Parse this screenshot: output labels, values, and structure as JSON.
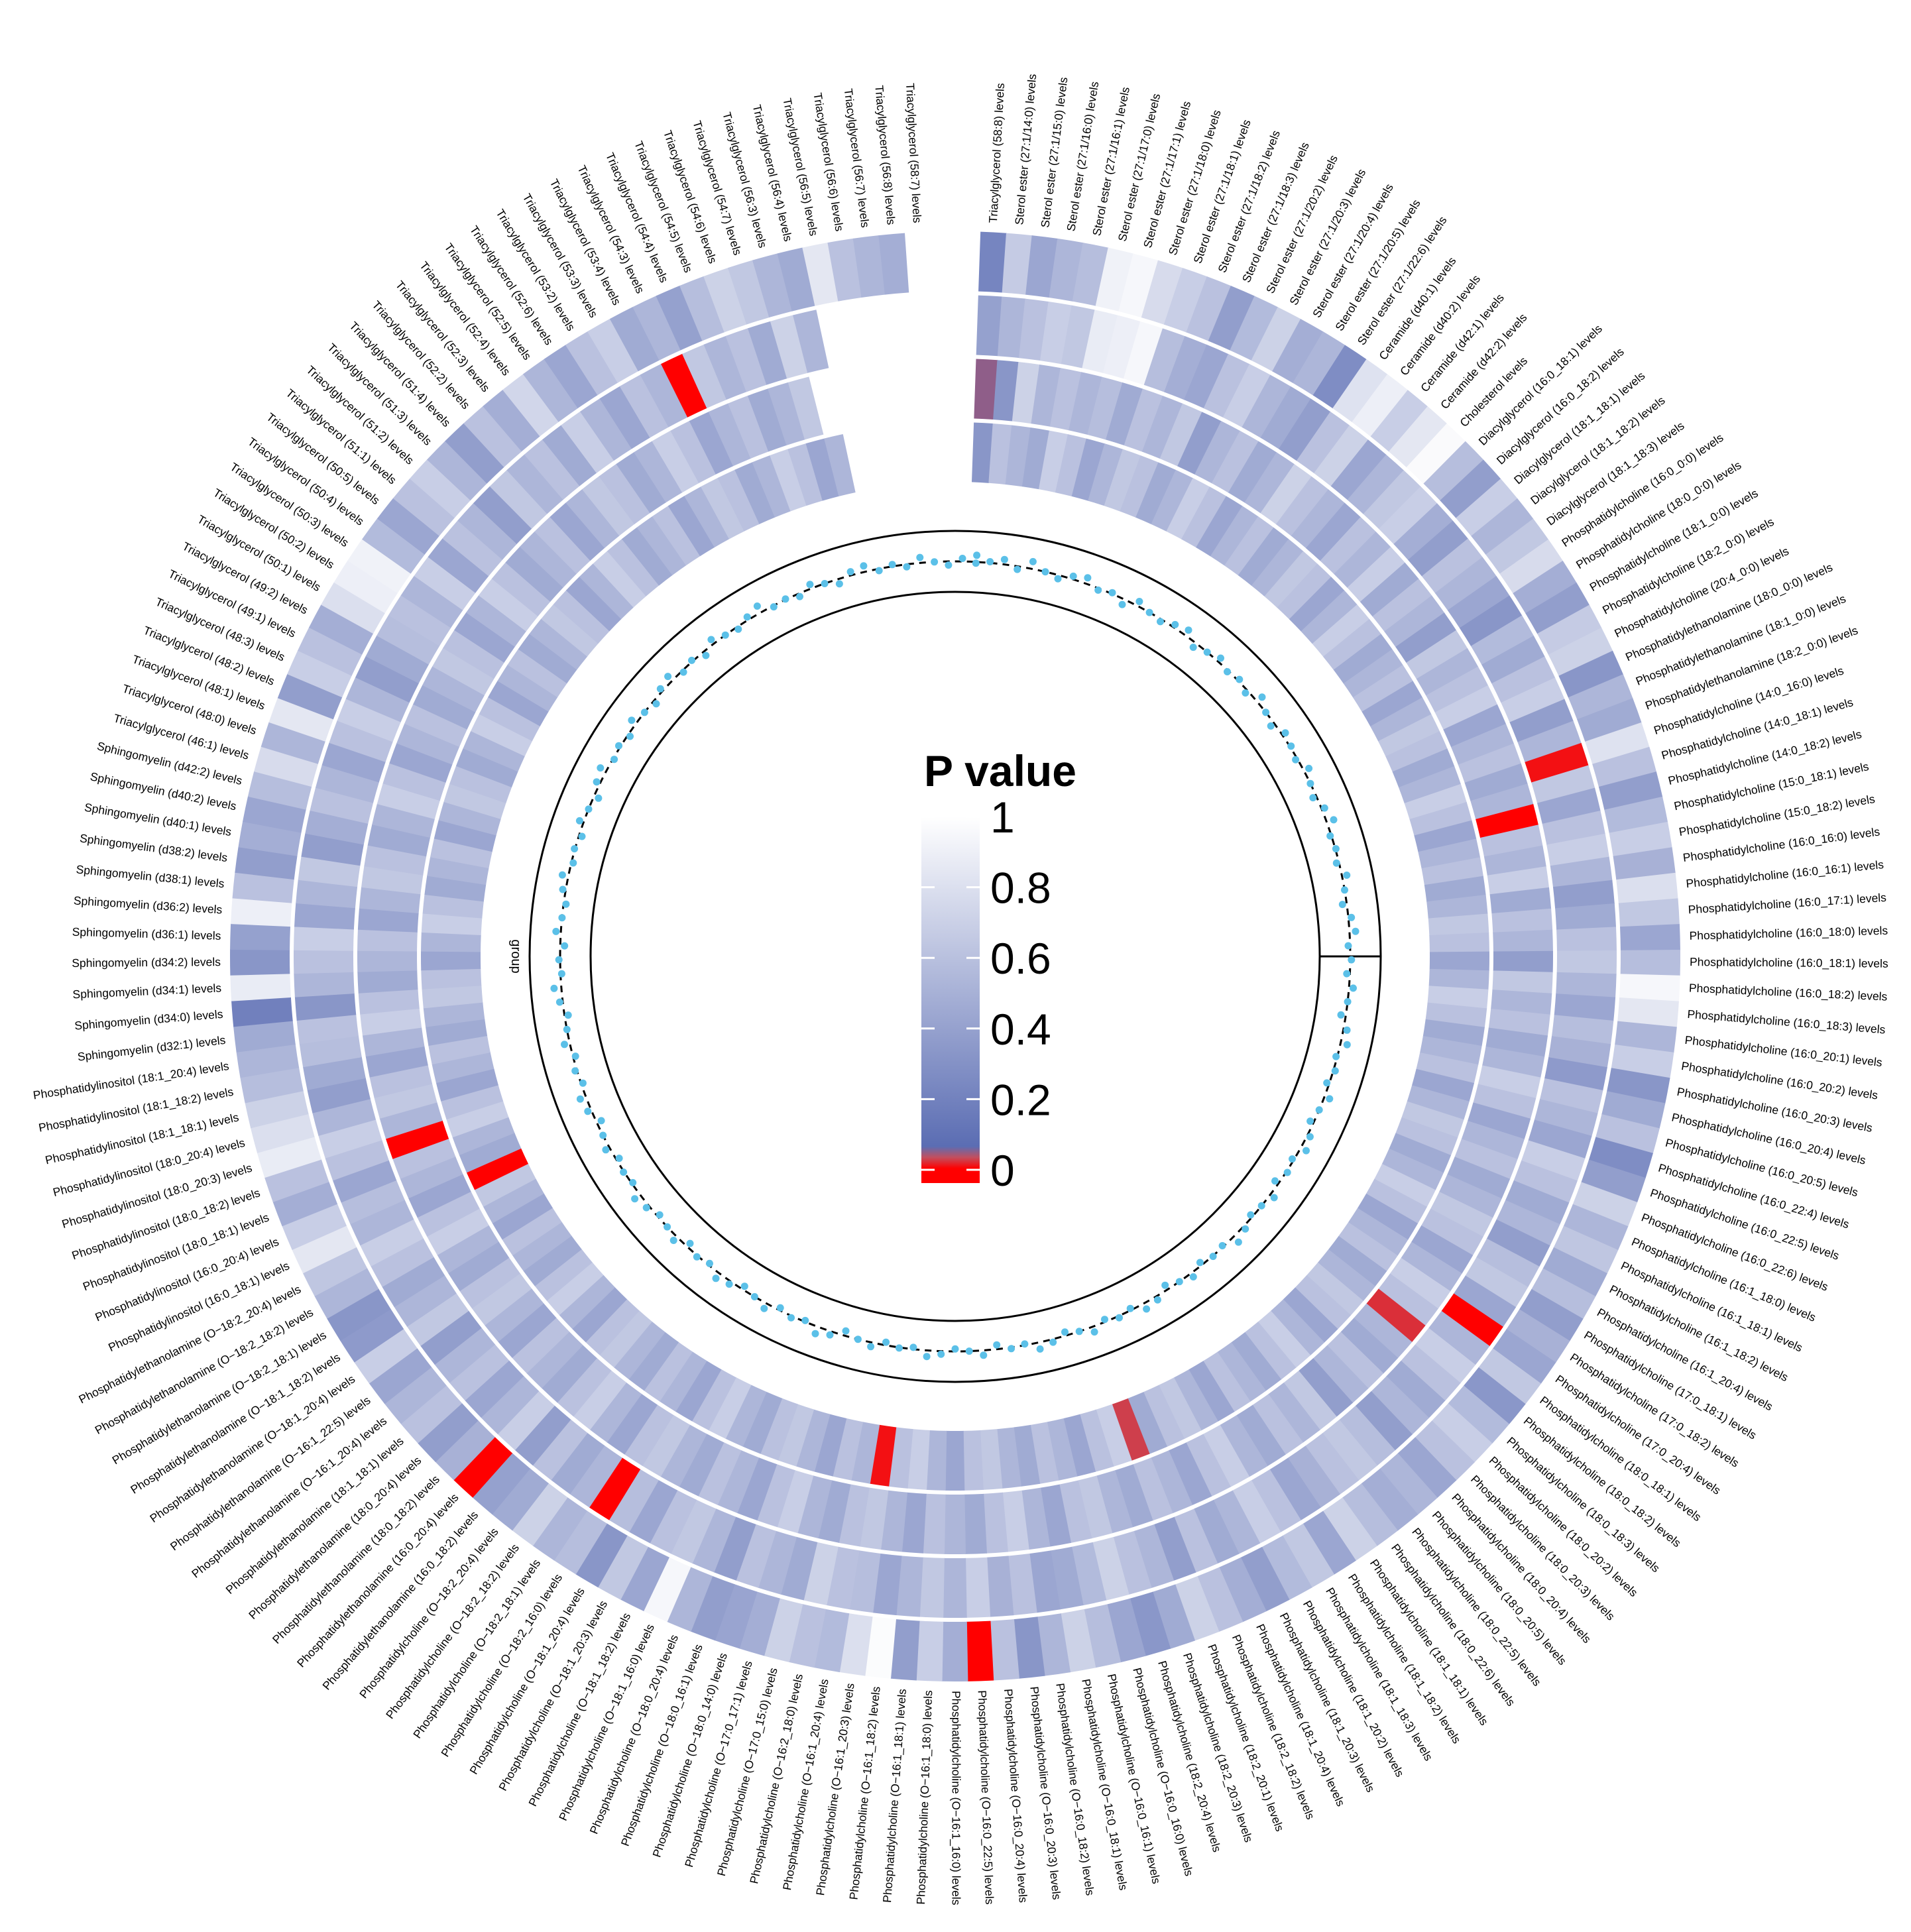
{
  "chart_data": {
    "type": "heatmap",
    "layout": "circular",
    "title": "",
    "legend": {
      "title": "P value",
      "ticks": [
        "1",
        "0.8",
        "0.6",
        "0.4",
        "0.2",
        "0"
      ],
      "placement": "center",
      "colors": {
        "zero": "#ff0000",
        "low": "#5b6db3",
        "high": "#ffffff"
      }
    },
    "track_label": "group",
    "point_color": "#5bc0e8",
    "labels": [
      "Triacylglycerol (58:8) levels",
      "Sterol ester (27:1/14:0) levels",
      "Sterol ester (27:1/15:0) levels",
      "Sterol ester (27:1/16:0) levels",
      "Sterol ester (27:1/16:1) levels",
      "Sterol ester (27:1/17:0) levels",
      "Sterol ester (27:1/17:1) levels",
      "Sterol ester (27:1/18:0) levels",
      "Sterol ester (27:1/18:1) levels",
      "Sterol ester (27:1/18:2) levels",
      "Sterol ester (27:1/18:3) levels",
      "Sterol ester (27:1/20:2) levels",
      "Sterol ester (27:1/20:3) levels",
      "Sterol ester (27:1/20:4) levels",
      "Sterol ester (27:1/20:5) levels",
      "Sterol ester (27:1/22:6) levels",
      "Ceramide (d40:1) levels",
      "Ceramide (d40:2) levels",
      "Ceramide (d42:1) levels",
      "Ceramide (d42:2) levels",
      "Cholesterol levels",
      "Diacylglycerol (16:0_18:1) levels",
      "Diacylglycerol (16:0_18:2) levels",
      "Diacylglycerol (18:1_18:1) levels",
      "Diacylglycerol (18:1_18:2) levels",
      "Diacylglycerol (18:1_18:3) levels",
      "Phosphatidylcholine (16:0_0:0) levels",
      "Phosphatidylcholine (18:0_0:0) levels",
      "Phosphatidylcholine (18:1_0:0) levels",
      "Phosphatidylcholine (18:2_0:0) levels",
      "Phosphatidylcholine (20:4_0:0) levels",
      "Phosphatidylethanolamine (18:0_0:0) levels",
      "Phosphatidylethanolamine (18:1_0:0) levels",
      "Phosphatidylethanolamine (18:2_0:0) levels",
      "Phosphatidylcholine (14:0_16:0) levels",
      "Phosphatidylcholine (14:0_18:1) levels",
      "Phosphatidylcholine (14:0_18:2) levels",
      "Phosphatidylcholine (15:0_18:1) levels",
      "Phosphatidylcholine (15:0_18:2) levels",
      "Phosphatidylcholine (16:0_16:0) levels",
      "Phosphatidylcholine (16:0_16:1) levels",
      "Phosphatidylcholine (16:0_17:1) levels",
      "Phosphatidylcholine (16:0_18:0) levels",
      "Phosphatidylcholine (16:0_18:1) levels",
      "Phosphatidylcholine (16:0_18:2) levels",
      "Phosphatidylcholine (16:0_18:3) levels",
      "Phosphatidylcholine (16:0_20:1) levels",
      "Phosphatidylcholine (16:0_20:2) levels",
      "Phosphatidylcholine (16:0_20:3) levels",
      "Phosphatidylcholine (16:0_20:4) levels",
      "Phosphatidylcholine (16:0_20:5) levels",
      "Phosphatidylcholine (16:0_22:4) levels",
      "Phosphatidylcholine (16:0_22:5) levels",
      "Phosphatidylcholine (16:0_22:6) levels",
      "Phosphatidylcholine (16:1_18:0) levels",
      "Phosphatidylcholine (16:1_18:1) levels",
      "Phosphatidylcholine (16:1_18:2) levels",
      "Phosphatidylcholine (16:1_20:4) levels",
      "Phosphatidylcholine (17:0_18:1) levels",
      "Phosphatidylcholine (17:0_18:2) levels",
      "Phosphatidylcholine (17:0_20:4) levels",
      "Phosphatidylcholine (18:0_18:1) levels",
      "Phosphatidylcholine (18:0_18:2) levels",
      "Phosphatidylcholine (18:0_18:3) levels",
      "Phosphatidylcholine (18:0_20:2) levels",
      "Phosphatidylcholine (18:0_20:3) levels",
      "Phosphatidylcholine (18:0_20:4) levels",
      "Phosphatidylcholine (18:0_20:5) levels",
      "Phosphatidylcholine (18:0_22:5) levels",
      "Phosphatidylcholine (18:0_22:6) levels",
      "Phosphatidylcholine (18:1_18:1) levels",
      "Phosphatidylcholine (18:1_18:2) levels",
      "Phosphatidylcholine (18:1_18:3) levels",
      "Phosphatidylcholine (18:1_20:2) levels",
      "Phosphatidylcholine (18:1_20:3) levels",
      "Phosphatidylcholine (18:1_20:4) levels",
      "Phosphatidylcholine (18:2_18:2) levels",
      "Phosphatidylcholine (18:2_20:1) levels",
      "Phosphatidylcholine (18:2_20:3) levels",
      "Phosphatidylcholine (18:2_20:4) levels",
      "Phosphatidylcholine (O−16:0_16:0) levels",
      "Phosphatidylcholine (O−16:0_16:1) levels",
      "Phosphatidylcholine (O−16:0_18:1) levels",
      "Phosphatidylcholine (O−16:0_18:2) levels",
      "Phosphatidylcholine (O−16:0_20:3) levels",
      "Phosphatidylcholine (O−16:0_20:4) levels",
      "Phosphatidylcholine (O−16:0_22:5) levels",
      "Phosphatidylcholine (O−16:1_16:0) levels",
      "Phosphatidylcholine (O−16:1_18:0) levels",
      "Phosphatidylcholine (O−16:1_18:1) levels",
      "Phosphatidylcholine (O−16:1_18:2) levels",
      "Phosphatidylcholine (O−16:1_20:3) levels",
      "Phosphatidylcholine (O−16:1_20:4) levels",
      "Phosphatidylcholine (O−16:2_18:0) levels",
      "Phosphatidylcholine (O−17:0_15:0) levels",
      "Phosphatidylcholine (O−17:0_17:1) levels",
      "Phosphatidylcholine (O−18:0_14:0) levels",
      "Phosphatidylcholine (O−18:0_16:1) levels",
      "Phosphatidylcholine (O−18:0_20:4) levels",
      "Phosphatidylcholine (O−18:1_16:0) levels",
      "Phosphatidylcholine (O−18:1_18:2) levels",
      "Phosphatidylcholine (O−18:1_20:3) levels",
      "Phosphatidylcholine (O−18:1_20:4) levels",
      "Phosphatidylcholine (O−18:2_16:0) levels",
      "Phosphatidylcholine (O−18:2_18:1) levels",
      "Phosphatidylcholine (O−18:2_18:2) levels",
      "Phosphatidylcholine (O−18:2_20:4) levels",
      "Phosphatidylethanolamine (16:0_18:2) levels",
      "Phosphatidylethanolamine (16:0_20:4) levels",
      "Phosphatidylethanolamine (18:0_18:2) levels",
      "Phosphatidylethanolamine (18:0_20:4) levels",
      "Phosphatidylethanolamine (18:1_18:1) levels",
      "Phosphatidylethanolamine (O−16:1_20:4) levels",
      "Phosphatidylethanolamine (O−16:1_22:5) levels",
      "Phosphatidylethanolamine (O−18:1_20:4) levels",
      "Phosphatidylethanolamine (O−18:1_18:2) levels",
      "Phosphatidylethanolamine (O−18:2_18:1) levels",
      "Phosphatidylethanolamine (O−18:2_18:2) levels",
      "Phosphatidylethanolamine (O−18:2_20:4) levels",
      "Phosphatidylinositol (16:0_18:1) levels",
      "Phosphatidylinositol (16:0_20:4) levels",
      "Phosphatidylinositol (18:0_18:1) levels",
      "Phosphatidylinositol (18:0_18:2) levels",
      "Phosphatidylinositol (18:0_20:3) levels",
      "Phosphatidylinositol (18:0_20:4) levels",
      "Phosphatidylinositol (18:1_18:1) levels",
      "Phosphatidylinositol (18:1_18:2) levels",
      "Phosphatidylinositol (18:1_20:4) levels",
      "Sphingomyelin (d32:1) levels",
      "Sphingomyelin (d34:0) levels",
      "Sphingomyelin (d34:1) levels",
      "Sphingomyelin (d34:2) levels",
      "Sphingomyelin (d36:1) levels",
      "Sphingomyelin (d36:2) levels",
      "Sphingomyelin (d38:1) levels",
      "Sphingomyelin (d38:2) levels",
      "Sphingomyelin (d40:1) levels",
      "Sphingomyelin (d40:2) levels",
      "Sphingomyelin (d42:2) levels",
      "Triacylglycerol (46:1) levels",
      "Triacylglycerol (48:0) levels",
      "Triacylglycerol (48:1) levels",
      "Triacylglycerol (48:2) levels",
      "Triacylglycerol (48:3) levels",
      "Triacylglycerol (49:1) levels",
      "Triacylglycerol (49:2) levels",
      "Triacylglycerol (50:1) levels",
      "Triacylglycerol (50:2) levels",
      "Triacylglycerol (50:3) levels",
      "Triacylglycerol (50:4) levels",
      "Triacylglycerol (50:5) levels",
      "Triacylglycerol (51:1) levels",
      "Triacylglycerol (51:2) levels",
      "Triacylglycerol (51:3) levels",
      "Triacylglycerol (51:4) levels",
      "Triacylglycerol (52:2) levels",
      "Triacylglycerol (52:3) levels",
      "Triacylglycerol (52:4) levels",
      "Triacylglycerol (52:5) levels",
      "Triacylglycerol (52:6) levels",
      "Triacylglycerol (53:2) levels",
      "Triacylglycerol (53:3) levels",
      "Triacylglycerol (53:4) levels",
      "Triacylglycerol (54:3) levels",
      "Triacylglycerol (54:4) levels",
      "Triacylglycerol (54:5) levels",
      "Triacylglycerol (54:6) levels",
      "Triacylglycerol (54:7) levels",
      "Triacylglycerol (56:3) levels",
      "Triacylglycerol (56:4) levels",
      "Triacylglycerol (56:5) levels",
      "Triacylglycerol (56:6) levels",
      "Triacylglycerol (56:7) levels",
      "Triacylglycerol (56:8) levels",
      "Triacylglycerol (58:7) levels"
    ],
    "rings": [
      [
        0.25,
        0.68,
        0.45,
        0.55,
        0.6,
        0.92,
        0.95,
        0.78,
        0.7,
        0.62,
        0.4,
        0.58,
        0.72,
        0.5,
        0.55,
        0.3,
        0.82,
        0.9,
        0.7,
        0.85,
        0.97,
        0.6,
        0.4,
        0.7,
        0.55,
        0.66,
        0.78,
        0.5,
        0.4,
        0.68,
        0.72,
        0.35,
        0.55,
        0.48,
        0.82,
        0.62,
        0.4,
        0.58,
        0.7,
        0.52,
        0.8,
        0.66,
        0.45,
        0.6,
        0.95,
        0.85,
        0.55,
        0.7,
        0.35,
        0.48,
        0.62,
        0.3,
        0.4,
        0.72,
        0.55,
        0.65,
        0.48,
        0.6,
        0.4,
        0.52,
        0.45,
        0.66,
        0.36,
        0.58,
        0.7,
        0.62,
        0.45,
        0.55,
        0.5,
        0.6,
        0.72,
        0.45,
        0.66,
        0.58,
        0.4,
        0.5,
        0.62,
        0.72,
        0.48,
        0.36,
        0.45,
        0.6,
        0.72,
        0.55,
        0.35,
        0.62,
        0.001,
        0.5,
        0.7,
        0.4,
        0.98,
        0.8,
        0.58,
        0.62,
        0.72,
        0.5,
        0.44,
        0.4,
        0.55,
        0.95,
        0.45,
        0.66,
        0.35,
        0.6,
        0.55,
        0.72,
        0.48,
        0.42,
        0.001,
        0.52,
        0.4,
        0.62,
        0.55,
        0.45,
        0.7,
        0.38,
        0.35,
        0.55,
        0.65,
        0.85,
        0.7,
        0.5,
        0.62,
        0.88,
        0.8,
        0.72,
        0.6,
        0.55,
        0.48,
        0.22,
        0.88,
        0.35,
        0.42,
        0.9,
        0.62,
        0.4,
        0.5,
        0.45,
        0.6,
        0.78,
        0.55,
        0.85,
        0.4,
        0.7,
        0.62,
        0.5,
        0.8,
        0.9,
        0.92,
        0.58,
        0.45,
        0.62,
        0.7,
        0.55,
        0.4,
        0.62,
        0.5,
        0.75,
        0.55,
        0.45,
        0.62,
        0.7,
        0.48,
        0.55,
        0.42,
        0.6,
        0.72,
        0.66,
        0.55,
        0.48,
        0.85,
        0.62,
        0.55,
        0.5
      ],
      [
        0.42,
        0.55,
        0.62,
        0.7,
        0.66,
        0.88,
        0.9,
        0.95,
        0.6,
        0.5,
        0.45,
        0.62,
        0.7,
        0.55,
        0.48,
        0.4,
        0.62,
        0.72,
        0.45,
        0.55,
        0.66,
        0.7,
        0.5,
        0.4,
        0.62,
        0.55,
        0.45,
        0.35,
        0.58,
        0.48,
        0.62,
        0.7,
        0.4,
        0.55,
        0.02,
        0.66,
        0.45,
        0.62,
        0.7,
        0.55,
        0.4,
        0.48,
        0.62,
        0.66,
        0.55,
        0.45,
        0.6,
        0.52,
        0.38,
        0.62,
        0.55,
        0.45,
        0.7,
        0.62,
        0.48,
        0.55,
        0.4,
        0.6,
        0.66,
        0.45,
        0.01,
        0.55,
        0.7,
        0.62,
        0.48,
        0.55,
        0.4,
        0.6,
        0.66,
        0.62,
        0.52,
        0.45,
        0.62,
        0.7,
        0.55,
        0.48,
        0.62,
        0.4,
        0.55,
        0.62,
        0.72,
        0.58,
        0.48,
        0.45,
        0.62,
        0.52,
        0.7,
        0.55,
        0.66,
        0.55,
        0.45,
        0.6,
        0.62,
        0.72,
        0.48,
        0.55,
        0.62,
        0.4,
        0.55,
        0.66,
        0.62,
        0.45,
        0.6,
        0.001,
        0.55,
        0.48,
        0.62,
        0.4,
        0.7,
        0.55,
        0.45,
        0.62,
        0.55,
        0.4,
        0.66,
        0.55,
        0.48,
        0.62,
        0.7,
        0.55,
        0.6,
        0.45,
        0.62,
        0.7,
        0.55,
        0.4,
        0.48,
        0.6,
        0.62,
        0.35,
        0.55,
        0.62,
        0.7,
        0.45,
        0.55,
        0.66,
        0.4,
        0.5,
        0.62,
        0.55,
        0.45,
        0.62,
        0.7,
        0.55,
        0.4,
        0.48,
        0.6,
        0.62,
        0.55,
        0.7,
        0.45,
        0.62,
        0.55,
        0.4,
        0.66,
        0.55,
        0.62,
        0.48,
        0.7,
        0.55,
        0.45,
        0.62,
        0.55,
        0.001,
        0.66,
        0.55,
        0.62,
        0.48,
        0.72,
        0.55
      ],
      [
        0.08,
        0.35,
        0.72,
        0.55,
        0.62,
        0.55,
        0.6,
        0.48,
        0.62,
        0.55,
        0.66,
        0.4,
        0.55,
        0.62,
        0.48,
        0.55,
        0.72,
        0.62,
        0.55,
        0.45,
        0.62,
        0.55,
        0.7,
        0.48,
        0.62,
        0.55,
        0.4,
        0.66,
        0.55,
        0.62,
        0.7,
        0.45,
        0.55,
        0.62,
        0.48,
        0.55,
        0.01,
        0.62,
        0.55,
        0.7,
        0.48,
        0.62,
        0.55,
        0.4,
        0.66,
        0.55,
        0.62,
        0.48,
        0.55,
        0.7,
        0.62,
        0.45,
        0.55,
        0.62,
        0.48,
        0.55,
        0.66,
        0.62,
        0.45,
        0.55,
        0.7,
        0.62,
        0.04,
        0.55,
        0.48,
        0.62,
        0.55,
        0.4,
        0.66,
        0.55,
        0.62,
        0.48,
        0.55,
        0.7,
        0.62,
        0.45,
        0.55,
        0.62,
        0.48,
        0.55,
        0.66,
        0.62,
        0.45,
        0.55,
        0.7,
        0.62,
        0.48,
        0.55,
        0.62,
        0.45,
        0.55,
        0.66,
        0.62,
        0.48,
        0.55,
        0.7,
        0.62,
        0.45,
        0.55,
        0.62,
        0.48,
        0.55,
        0.66,
        0.62,
        0.45,
        0.55,
        0.7,
        0.62,
        0.48,
        0.55,
        0.62,
        0.45,
        0.55,
        0.66,
        0.62,
        0.48,
        0.55,
        0.7,
        0.62,
        0.45,
        0.55,
        0.62,
        0.001,
        0.55,
        0.66,
        0.62,
        0.45,
        0.55,
        0.7,
        0.62,
        0.48,
        0.55,
        0.62,
        0.45,
        0.55,
        0.66,
        0.62,
        0.48,
        0.55,
        0.7,
        0.62,
        0.45,
        0.55,
        0.62,
        0.48,
        0.55,
        0.66,
        0.62,
        0.45,
        0.55,
        0.7,
        0.62,
        0.48,
        0.55,
        0.62,
        0.45,
        0.55,
        0.66,
        0.62,
        0.48,
        0.55,
        0.7,
        0.62,
        0.45,
        0.55,
        0.62,
        0.48,
        0.55,
        0.66
      ],
      [
        0.35,
        0.62,
        0.55,
        0.48,
        0.7,
        0.62,
        0.45,
        0.55,
        0.66,
        0.62,
        0.48,
        0.55,
        0.7,
        0.62,
        0.45,
        0.55,
        0.62,
        0.48,
        0.55,
        0.66,
        0.62,
        0.45,
        0.55,
        0.7,
        0.62,
        0.48,
        0.55,
        0.62,
        0.45,
        0.55,
        0.66,
        0.62,
        0.48,
        0.55,
        0.7,
        0.62,
        0.45,
        0.55,
        0.62,
        0.48,
        0.55,
        0.66,
        0.62,
        0.45,
        0.55,
        0.7,
        0.62,
        0.48,
        0.55,
        0.62,
        0.45,
        0.55,
        0.66,
        0.62,
        0.48,
        0.55,
        0.7,
        0.62,
        0.45,
        0.55,
        0.62,
        0.48,
        0.55,
        0.66,
        0.62,
        0.45,
        0.55,
        0.7,
        0.62,
        0.48,
        0.55,
        0.62,
        0.45,
        0.55,
        0.66,
        0.62,
        0.48,
        0.05,
        0.7,
        0.62,
        0.45,
        0.55,
        0.62,
        0.48,
        0.55,
        0.66,
        0.62,
        0.45,
        0.55,
        0.7,
        0.62,
        0.02,
        0.55,
        0.62,
        0.45,
        0.55,
        0.66,
        0.62,
        0.48,
        0.55,
        0.7,
        0.62,
        0.45,
        0.55,
        0.62,
        0.48,
        0.55,
        0.66,
        0.62,
        0.45,
        0.55,
        0.7,
        0.62,
        0.48,
        0.55,
        0.62,
        0.45,
        0.55,
        0.66,
        0.001,
        0.48,
        0.55,
        0.7,
        0.62,
        0.45,
        0.55,
        0.62,
        0.48,
        0.55,
        0.66,
        0.62,
        0.45,
        0.55,
        0.7,
        0.62,
        0.48,
        0.55,
        0.62,
        0.45,
        0.55,
        0.66,
        0.62,
        0.48,
        0.55,
        0.7,
        0.62,
        0.45,
        0.55,
        0.62,
        0.48,
        0.55,
        0.66,
        0.62,
        0.45,
        0.55,
        0.7,
        0.62,
        0.48,
        0.55,
        0.62,
        0.45,
        0.55,
        0.66,
        0.62,
        0.48,
        0.55,
        0.7,
        0.62,
        0.45,
        0.55
      ]
    ],
    "points": [
      0.48,
      0.52,
      0.58,
      0.45,
      0.62,
      0.5,
      0.44,
      0.55,
      0.6,
      0.47,
      0.52,
      0.41,
      0.58,
      0.5,
      0.46,
      0.55,
      0.6,
      0.42,
      0.5,
      0.57,
      0.48,
      0.53,
      0.45,
      0.61,
      0.5,
      0.43,
      0.56,
      0.52,
      0.47,
      0.59,
      0.5,
      0.44,
      0.55,
      0.62,
      0.48,
      0.51,
      0.46,
      0.58,
      0.5,
      0.43,
      0.55,
      0.6,
      0.47,
      0.52,
      0.45,
      0.57,
      0.5,
      0.42,
      0.56,
      0.61,
      0.48,
      0.53,
      0.46,
      0.59,
      0.5,
      0.44,
      0.55,
      0.6,
      0.47,
      0.52,
      0.43,
      0.58,
      0.5,
      0.46,
      0.55,
      0.62,
      0.48,
      0.51,
      0.45,
      0.57,
      0.5,
      0.42,
      0.56,
      0.6,
      0.47,
      0.53,
      0.46,
      0.59,
      0.5,
      0.44,
      0.55,
      0.61,
      0.48,
      0.52,
      0.43,
      0.58,
      0.5,
      0.46,
      0.55,
      0.6,
      0.47,
      0.51,
      0.45,
      0.57,
      0.5,
      0.42,
      0.56,
      0.62,
      0.48,
      0.53,
      0.46,
      0.59,
      0.5,
      0.44,
      0.55,
      0.6,
      0.47,
      0.52,
      0.43,
      0.58,
      0.5,
      0.46,
      0.55,
      0.61,
      0.48,
      0.51,
      0.45,
      0.57,
      0.5,
      0.42,
      0.56,
      0.6,
      0.47,
      0.53,
      0.46,
      0.59,
      0.5,
      0.44,
      0.55,
      0.62,
      0.48,
      0.52,
      0.43,
      0.58,
      0.5,
      0.46,
      0.55,
      0.6,
      0.47,
      0.51,
      0.45,
      0.57,
      0.5,
      0.42,
      0.56,
      0.61,
      0.48,
      0.53,
      0.46,
      0.59,
      0.5,
      0.44,
      0.55,
      0.6,
      0.47,
      0.52,
      0.43,
      0.58,
      0.5,
      0.46,
      0.55,
      0.62,
      0.48,
      0.51,
      0.45,
      0.57,
      0.5,
      0.42,
      0.56,
      0.6,
      0.47,
      0.53,
      0.46,
      0.59,
      0.5,
      0.44,
      0.55,
      0.61
    ]
  }
}
